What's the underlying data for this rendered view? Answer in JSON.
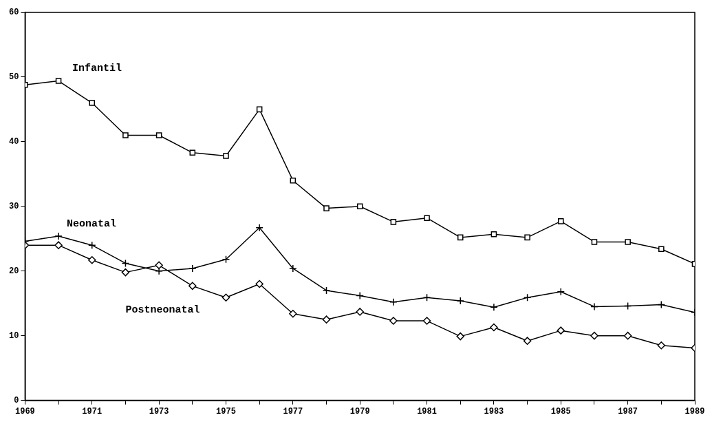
{
  "chart_data": {
    "type": "line",
    "x": [
      1969,
      1970,
      1971,
      1972,
      1973,
      1974,
      1975,
      1976,
      1977,
      1978,
      1979,
      1980,
      1981,
      1982,
      1983,
      1984,
      1985,
      1986,
      1987,
      1988,
      1989
    ],
    "series": [
      {
        "name": "Infantil",
        "color": "#000000",
        "marker": "square",
        "values": [
          48.8,
          49.4,
          46,
          41,
          41,
          38.3,
          37.8,
          45,
          34,
          29.7,
          30,
          27.6,
          28.2,
          25.2,
          25.7,
          25.2,
          27.7,
          24.5,
          24.5,
          23.4,
          21.1
        ]
      },
      {
        "name": "Neonatal",
        "color": "#000000",
        "marker": "cross",
        "values": [
          24.6,
          25.4,
          24,
          21.2,
          20,
          20.4,
          21.8,
          26.7,
          20.4,
          17,
          16.2,
          15.2,
          15.9,
          15.4,
          14.4,
          15.9,
          16.8,
          14.5,
          14.6,
          14.8,
          13.6
        ]
      },
      {
        "name": "Postneonatal",
        "color": "#000000",
        "marker": "diamond",
        "values": [
          24,
          24,
          21.7,
          19.8,
          20.9,
          17.7,
          15.9,
          18,
          13.4,
          12.5,
          13.7,
          12.3,
          12.3,
          9.9,
          11.3,
          9.2,
          10.8,
          10,
          10,
          8.5,
          8.1
        ]
      }
    ],
    "xlim": [
      1969,
      1989
    ],
    "xticks": [
      1969,
      {
        "value": 1970,
        "label": null
      },
      1971,
      {
        "value": 1972,
        "label": null
      },
      1973,
      {
        "value": 1974,
        "label": null
      },
      1975,
      {
        "value": 1976,
        "label": null
      },
      1977,
      {
        "value": 1978,
        "label": null
      },
      1979,
      {
        "value": 1980,
        "label": null
      },
      1981,
      {
        "value": 1982,
        "label": null
      },
      1983,
      {
        "value": 1984,
        "label": null
      },
      1985,
      {
        "value": 1986,
        "label": null
      },
      1987,
      {
        "value": 1988,
        "label": null
      },
      1989
    ],
    "ylim": [
      0,
      60
    ],
    "yticks": [
      0,
      10,
      20,
      30,
      40,
      50,
      60
    ],
    "grid": false,
    "legend": false,
    "line_style": "solid"
  }
}
